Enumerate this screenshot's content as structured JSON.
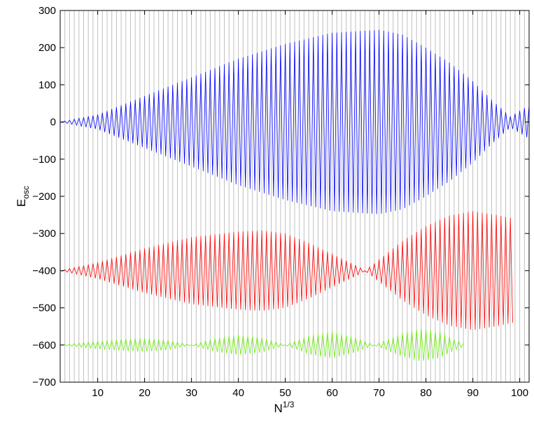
{
  "chart_data": {
    "type": "line",
    "title": "",
    "xlabel": {
      "base": "N",
      "superscript": "1/3"
    },
    "ylabel": {
      "base": "E",
      "subscript": "osc"
    },
    "xlim": [
      2,
      102
    ],
    "ylim": [
      -700,
      300
    ],
    "xticks": [
      10,
      20,
      30,
      40,
      50,
      60,
      70,
      80,
      90,
      100
    ],
    "yticks": [
      -700,
      -600,
      -500,
      -400,
      -300,
      -200,
      -100,
      0,
      100,
      200,
      300
    ],
    "grid": "vertical lines at each integer N^(1/3)",
    "grid_color": "#c0c0c0",
    "legend": "none",
    "series": [
      {
        "color": "#0000ff",
        "baseline": 0,
        "x_range": [
          2,
          102
        ],
        "envelope": [
          [
            2,
            0
          ],
          [
            10,
            20
          ],
          [
            20,
            70
          ],
          [
            30,
            120
          ],
          [
            40,
            170
          ],
          [
            50,
            210
          ],
          [
            60,
            240
          ],
          [
            70,
            248
          ],
          [
            75,
            235
          ],
          [
            80,
            200
          ],
          [
            85,
            160
          ],
          [
            90,
            110
          ],
          [
            94,
            60
          ],
          [
            98,
            15
          ],
          [
            100,
            30
          ],
          [
            102,
            45
          ]
        ]
      },
      {
        "color": "#ff0000",
        "baseline": -400,
        "x_range": [
          2,
          98.5
        ],
        "envelope": [
          [
            2,
            0
          ],
          [
            10,
            22
          ],
          [
            20,
            60
          ],
          [
            30,
            90
          ],
          [
            40,
            105
          ],
          [
            45,
            108
          ],
          [
            50,
            100
          ],
          [
            55,
            75
          ],
          [
            60,
            45
          ],
          [
            65,
            15
          ],
          [
            67,
            0
          ],
          [
            70,
            30
          ],
          [
            75,
            80
          ],
          [
            80,
            120
          ],
          [
            85,
            148
          ],
          [
            90,
            160
          ],
          [
            95,
            150
          ],
          [
            98.5,
            140
          ]
        ]
      },
      {
        "color": "#66ee00",
        "baseline": -600,
        "x_range": [
          2,
          88
        ],
        "envelope": [
          [
            2,
            0
          ],
          [
            8,
            8
          ],
          [
            15,
            15
          ],
          [
            20,
            18
          ],
          [
            25,
            13
          ],
          [
            30,
            0
          ],
          [
            35,
            18
          ],
          [
            40,
            27
          ],
          [
            45,
            20
          ],
          [
            50,
            0
          ],
          [
            55,
            25
          ],
          [
            60,
            36
          ],
          [
            65,
            20
          ],
          [
            69,
            0
          ],
          [
            75,
            32
          ],
          [
            79,
            44
          ],
          [
            83,
            35
          ],
          [
            86,
            15
          ],
          [
            88,
            5
          ]
        ]
      }
    ]
  }
}
